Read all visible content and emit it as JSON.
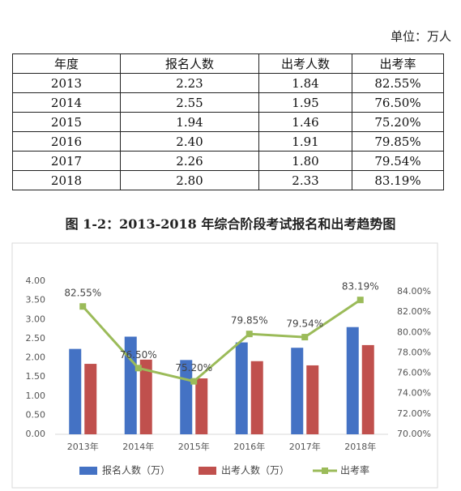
{
  "unit_note": "单位：万人",
  "table": {
    "header": [
      "年度",
      "报名人数",
      "出考人数",
      "出考率"
    ],
    "rows": [
      [
        "2013",
        "2.23",
        "1.84",
        "82.55%"
      ],
      [
        "2014",
        "2.55",
        "1.95",
        "76.50%"
      ],
      [
        "2015",
        "1.94",
        "1.46",
        "75.20%"
      ],
      [
        "2016",
        "2.40",
        "1.91",
        "79.85%"
      ],
      [
        "2017",
        "2.26",
        "1.80",
        "79.54%"
      ],
      [
        "2018",
        "2.80",
        "2.33",
        "83.19%"
      ]
    ]
  },
  "caption": "图 1-2：2013-2018 年综合阶段考试报名和出考趋势图",
  "chart_data": {
    "type": "bar_line",
    "categories": [
      "2013年",
      "2014年",
      "2015年",
      "2016年",
      "2017年",
      "2018年"
    ],
    "series": [
      {
        "name": "报名人数（万）",
        "type": "bar",
        "color": "#4472c4",
        "values": [
          2.23,
          2.55,
          1.94,
          2.4,
          2.26,
          2.8
        ]
      },
      {
        "name": "出考人数（万）",
        "type": "bar",
        "color": "#c0504d",
        "values": [
          1.84,
          1.95,
          1.46,
          1.91,
          1.8,
          2.33
        ]
      },
      {
        "name": "出考率",
        "type": "line",
        "axis": "y2",
        "color": "#9bbb59",
        "values": [
          82.55,
          76.5,
          75.2,
          79.85,
          79.54,
          83.19
        ],
        "value_labels": [
          "82.55%",
          "76.50%",
          "75.20%",
          "79.85%",
          "79.54%",
          "83.19%"
        ]
      }
    ],
    "ylim": [
      0,
      4
    ],
    "yticks": [
      {
        "value": 0,
        "label": "0.00"
      },
      {
        "value": 0.5,
        "label": "0.50"
      },
      {
        "value": 1,
        "label": "1.00"
      },
      {
        "value": 1.5,
        "label": "1.50"
      },
      {
        "value": 2,
        "label": "2.00"
      },
      {
        "value": 2.5,
        "label": "2.50"
      },
      {
        "value": 3,
        "label": "3.00"
      },
      {
        "value": 3.5,
        "label": "3.50"
      },
      {
        "value": 4,
        "label": "4.00"
      }
    ],
    "y2lim": [
      70,
      84
    ],
    "y2ticks": [
      {
        "value": 70,
        "label": "70.00%"
      },
      {
        "value": 72,
        "label": "72.00%"
      },
      {
        "value": 74,
        "label": "74.00%"
      },
      {
        "value": 76,
        "label": "76.00%"
      },
      {
        "value": 78,
        "label": "78.00%"
      },
      {
        "value": 80,
        "label": "80.00%"
      },
      {
        "value": 82,
        "label": "82.00%"
      },
      {
        "value": 84,
        "label": "84.00%"
      }
    ],
    "grid": false,
    "legend": "bottom"
  }
}
